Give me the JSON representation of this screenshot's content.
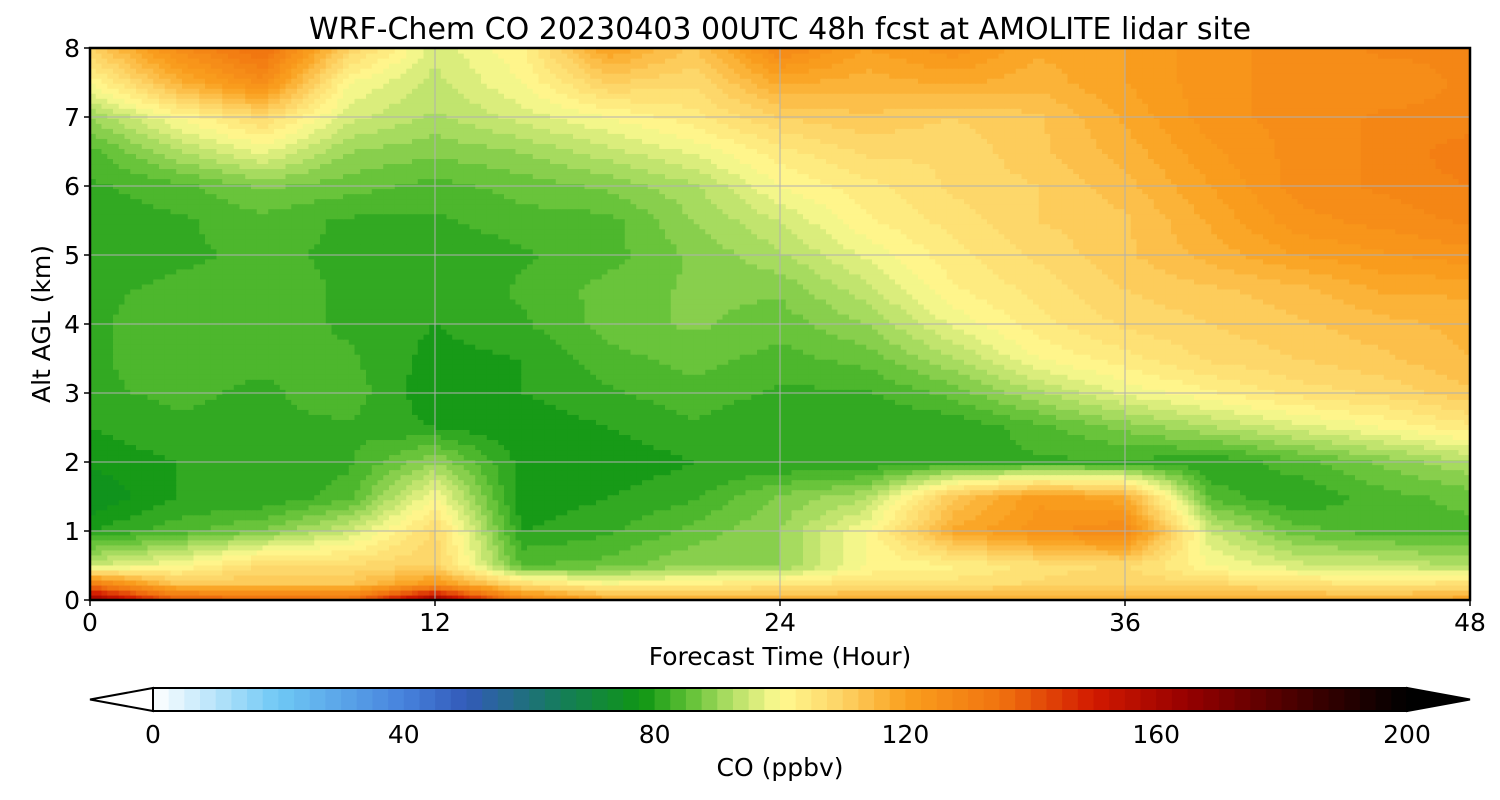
{
  "chart_data": {
    "type": "heatmap",
    "title": "WRF-Chem CO  20230403 00UTC 48h fcst at AMOLITE lidar site",
    "xlabel": "Forecast Time (Hour)",
    "ylabel": "Alt AGL (km)",
    "xlim": [
      0,
      48
    ],
    "ylim": [
      0,
      8
    ],
    "xticks": [
      "0",
      "12",
      "24",
      "36",
      "48"
    ],
    "yticks": [
      "0",
      "1",
      "2",
      "3",
      "4",
      "5",
      "6",
      "7",
      "8"
    ],
    "grid": true,
    "x_hours": [
      0,
      3,
      6,
      9,
      12,
      15,
      18,
      21,
      24,
      27,
      30,
      33,
      36,
      39,
      42,
      45,
      48
    ],
    "z_km": [
      0,
      0.25,
      0.5,
      1,
      1.5,
      2,
      2.5,
      3,
      3.5,
      4,
      4.5,
      5,
      5.5,
      6,
      6.5,
      7,
      7.5,
      8
    ],
    "values": [
      [
        165,
        140,
        138,
        135,
        165,
        130,
        120,
        120,
        118,
        118,
        118,
        118,
        118,
        118,
        118,
        118,
        120
      ],
      [
        130,
        112,
        112,
        112,
        122,
        106,
        100,
        102,
        104,
        106,
        106,
        108,
        110,
        108,
        106,
        104,
        106
      ],
      [
        95,
        100,
        108,
        108,
        110,
        85,
        86,
        90,
        90,
        100,
        102,
        106,
        108,
        100,
        96,
        95,
        92
      ],
      [
        80,
        84,
        88,
        95,
        108,
        80,
        82,
        86,
        90,
        100,
        118,
        124,
        128,
        95,
        86,
        84,
        84
      ],
      [
        75,
        80,
        80,
        84,
        100,
        78,
        80,
        82,
        88,
        92,
        112,
        122,
        118,
        84,
        80,
        84,
        86
      ],
      [
        78,
        80,
        80,
        82,
        90,
        79,
        78,
        80,
        80,
        80,
        82,
        82,
        82,
        80,
        84,
        88,
        92
      ],
      [
        80,
        82,
        82,
        82,
        80,
        78,
        80,
        82,
        80,
        80,
        80,
        84,
        88,
        92,
        96,
        100,
        104
      ],
      [
        82,
        83,
        82,
        84,
        78,
        80,
        82,
        84,
        82,
        82,
        86,
        92,
        98,
        102,
        106,
        108,
        112
      ],
      [
        82,
        84,
        83,
        83,
        79,
        80,
        84,
        86,
        84,
        86,
        92,
        100,
        104,
        108,
        110,
        112,
        115
      ],
      [
        82,
        84,
        84,
        82,
        80,
        82,
        86,
        88,
        86,
        90,
        98,
        104,
        108,
        110,
        112,
        114,
        116
      ],
      [
        82,
        83,
        84,
        82,
        80,
        83,
        86,
        88,
        88,
        94,
        102,
        106,
        110,
        112,
        114,
        118,
        118
      ],
      [
        81,
        82,
        83,
        82,
        80,
        82,
        84,
        88,
        92,
        98,
        104,
        108,
        112,
        116,
        120,
        122,
        124
      ],
      [
        81,
        82,
        84,
        82,
        82,
        84,
        84,
        90,
        95,
        102,
        106,
        110,
        112,
        118,
        124,
        126,
        128
      ],
      [
        82,
        84,
        88,
        86,
        84,
        86,
        88,
        92,
        100,
        104,
        108,
        110,
        114,
        120,
        126,
        128,
        130
      ],
      [
        84,
        92,
        98,
        90,
        88,
        90,
        94,
        98,
        104,
        108,
        108,
        112,
        116,
        122,
        126,
        128,
        132
      ],
      [
        90,
        100,
        108,
        96,
        92,
        96,
        100,
        104,
        110,
        112,
        110,
        112,
        118,
        124,
        126,
        128,
        128
      ],
      [
        100,
        116,
        126,
        100,
        94,
        100,
        110,
        108,
        118,
        116,
        118,
        116,
        120,
        124,
        126,
        126,
        128
      ],
      [
        110,
        126,
        136,
        110,
        96,
        102,
        120,
        112,
        128,
        120,
        124,
        118,
        120,
        124,
        126,
        128,
        128
      ]
    ],
    "colorbar": {
      "label": "CO  (ppbv)",
      "ticks": [
        "0",
        "40",
        "80",
        "120",
        "160",
        "200"
      ],
      "range": [
        0,
        200
      ],
      "step": 2.5,
      "extend": "both"
    }
  }
}
